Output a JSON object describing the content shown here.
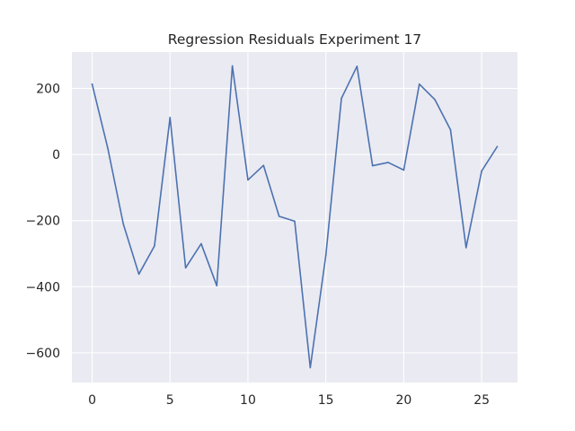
{
  "chart_data": {
    "type": "line",
    "title": "Regression Residuals Experiment 17",
    "xlabel": "",
    "ylabel": "",
    "x": [
      0,
      1,
      2,
      3,
      4,
      5,
      6,
      7,
      8,
      9,
      10,
      11,
      12,
      13,
      14,
      15,
      16,
      17,
      18,
      19,
      20,
      21,
      22,
      23,
      24,
      25,
      26
    ],
    "series": [
      {
        "name": "",
        "color": "#4c72b0",
        "values": [
          213,
          20,
          -210,
          -362,
          -277,
          112,
          -343,
          -270,
          -397,
          268,
          -77,
          -33,
          -187,
          -202,
          -645,
          -305,
          170,
          267,
          -34,
          -24,
          -47,
          213,
          166,
          75,
          -282,
          -50,
          24
        ]
      }
    ],
    "xlim": [
      -1.3,
      27.3
    ],
    "ylim": [
      -690,
      310
    ],
    "xticks": [
      0,
      5,
      10,
      15,
      20,
      25
    ],
    "xtick_labels": [
      "0",
      "5",
      "10",
      "15",
      "20",
      "25"
    ],
    "yticks": [
      200,
      0,
      -200,
      -400,
      -600
    ],
    "ytick_labels": [
      "200",
      "0",
      "−200",
      "−400",
      "−600"
    ],
    "grid": true,
    "background": "#eaeaf2",
    "grid_color": "#ffffff"
  }
}
